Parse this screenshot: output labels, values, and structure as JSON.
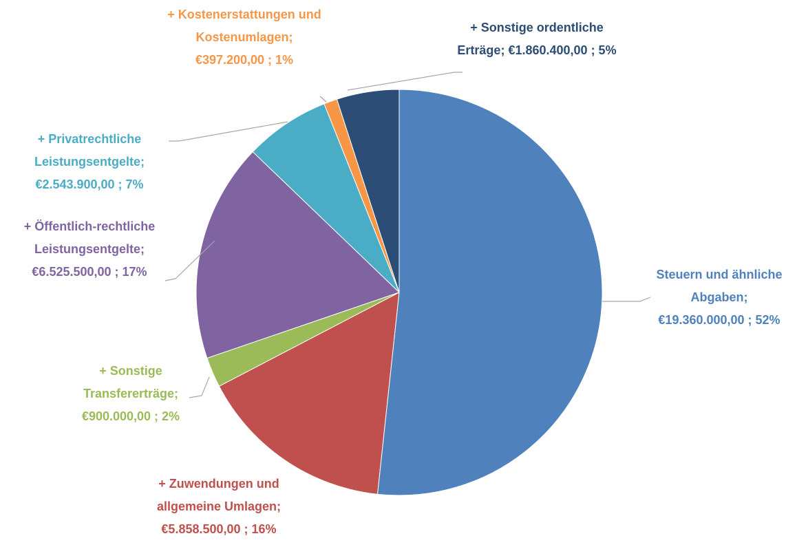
{
  "chart_data": {
    "type": "pie",
    "categories": [
      "Steuern und ähnliche Abgaben",
      "+ Zuwendungen und allgemeine Umlagen",
      "+ Sonstige Transfererträge",
      "+ Öffentlich-rechtliche Leistungsentgelte",
      "+ Privatrechtliche Leistungsentgelte",
      "+ Kostenerstattungen und Kostenumlagen",
      "+ Sonstige ordentliche Erträge"
    ],
    "values": [
      19360000,
      5858500,
      900000,
      6525500,
      2543900,
      397200,
      1860400
    ],
    "value_labels": [
      "€19.360.000,00 ; 52%",
      "€5.858.500,00 ; 16%",
      "€900.000,00 ; 2%",
      "€6.525.500,00 ; 17%",
      "€2.543.900,00 ; 7%",
      "€397.200,00 ; 1%",
      "€1.860.400,00 ; 5%"
    ],
    "separator": ";",
    "colors": [
      "#4f81bd",
      "#c0504d",
      "#9bbb59",
      "#8064a2",
      "#4bacc6",
      "#f79646",
      "#2c4d75"
    ]
  }
}
